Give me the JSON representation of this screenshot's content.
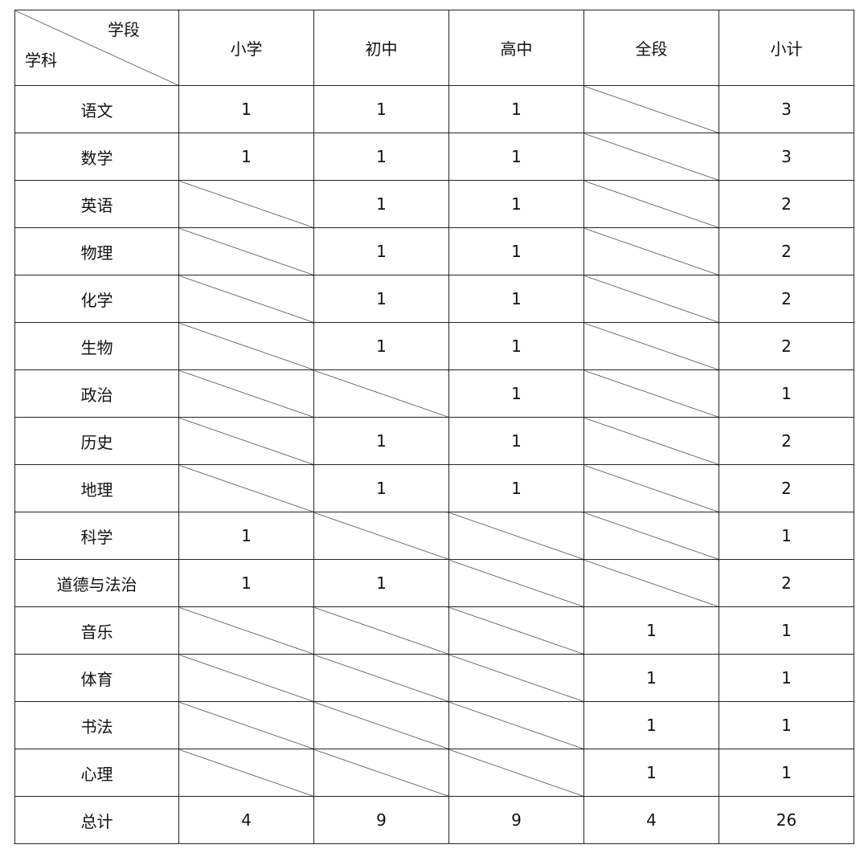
{
  "header": {
    "corner_top": "学段",
    "corner_bottom": "学科",
    "columns": [
      "小学",
      "初中",
      "高中",
      "全段",
      "小计"
    ]
  },
  "rows": [
    {
      "subject": "语文",
      "values": [
        "1",
        "1",
        "1",
        null,
        "3"
      ]
    },
    {
      "subject": "数学",
      "values": [
        "1",
        "1",
        "1",
        null,
        "3"
      ]
    },
    {
      "subject": "英语",
      "values": [
        null,
        "1",
        "1",
        null,
        "2"
      ]
    },
    {
      "subject": "物理",
      "values": [
        null,
        "1",
        "1",
        null,
        "2"
      ]
    },
    {
      "subject": "化学",
      "values": [
        null,
        "1",
        "1",
        null,
        "2"
      ]
    },
    {
      "subject": "生物",
      "values": [
        null,
        "1",
        "1",
        null,
        "2"
      ]
    },
    {
      "subject": "政治",
      "values": [
        null,
        null,
        "1",
        null,
        "1"
      ]
    },
    {
      "subject": "历史",
      "values": [
        null,
        "1",
        "1",
        null,
        "2"
      ]
    },
    {
      "subject": "地理",
      "values": [
        null,
        "1",
        "1",
        null,
        "2"
      ]
    },
    {
      "subject": "科学",
      "values": [
        "1",
        null,
        null,
        null,
        "1"
      ]
    },
    {
      "subject": "道德与法治",
      "values": [
        "1",
        "1",
        null,
        null,
        "2"
      ]
    },
    {
      "subject": "音乐",
      "values": [
        null,
        null,
        null,
        "1",
        "1"
      ]
    },
    {
      "subject": "体育",
      "values": [
        null,
        null,
        null,
        "1",
        "1"
      ]
    },
    {
      "subject": "书法",
      "values": [
        null,
        null,
        null,
        "1",
        "1"
      ]
    },
    {
      "subject": "心理",
      "values": [
        null,
        null,
        null,
        "1",
        "1"
      ]
    },
    {
      "subject": "总计",
      "values": [
        "4",
        "9",
        "9",
        "4",
        "26"
      ]
    }
  ]
}
